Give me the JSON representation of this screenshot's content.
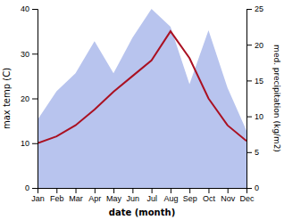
{
  "chart_data": {
    "type": "line",
    "xlabel": "date (month)",
    "ylabel": "max temp (C)",
    "y2label": "med. precipitation (kg/m2)",
    "categories": [
      "Jan",
      "Feb",
      "Mar",
      "Apr",
      "May",
      "Jun",
      "Jul",
      "Aug",
      "Sep",
      "Oct",
      "Nov",
      "Dec"
    ],
    "series": [
      {
        "type": "line",
        "color": "#aa1122",
        "values": [
          10.0,
          11.5,
          14.0,
          17.5,
          21.5,
          25.0,
          28.5,
          35.0,
          29.0,
          20.0,
          14.0,
          10.5
        ]
      },
      {
        "type": "area",
        "axis": "y2",
        "color": "#b8c4ee",
        "values": [
          9.5,
          13.5,
          16.0,
          20.5,
          16.0,
          21.0,
          25.0,
          22.5,
          14.5,
          22.0,
          14.0,
          8.0
        ]
      }
    ],
    "ylim": [
      0,
      40
    ],
    "yticks": [
      0,
      10,
      20,
      30,
      40
    ],
    "y2lim": [
      0,
      25
    ],
    "y2ticks": [
      0,
      5,
      10,
      15,
      20,
      25
    ]
  }
}
